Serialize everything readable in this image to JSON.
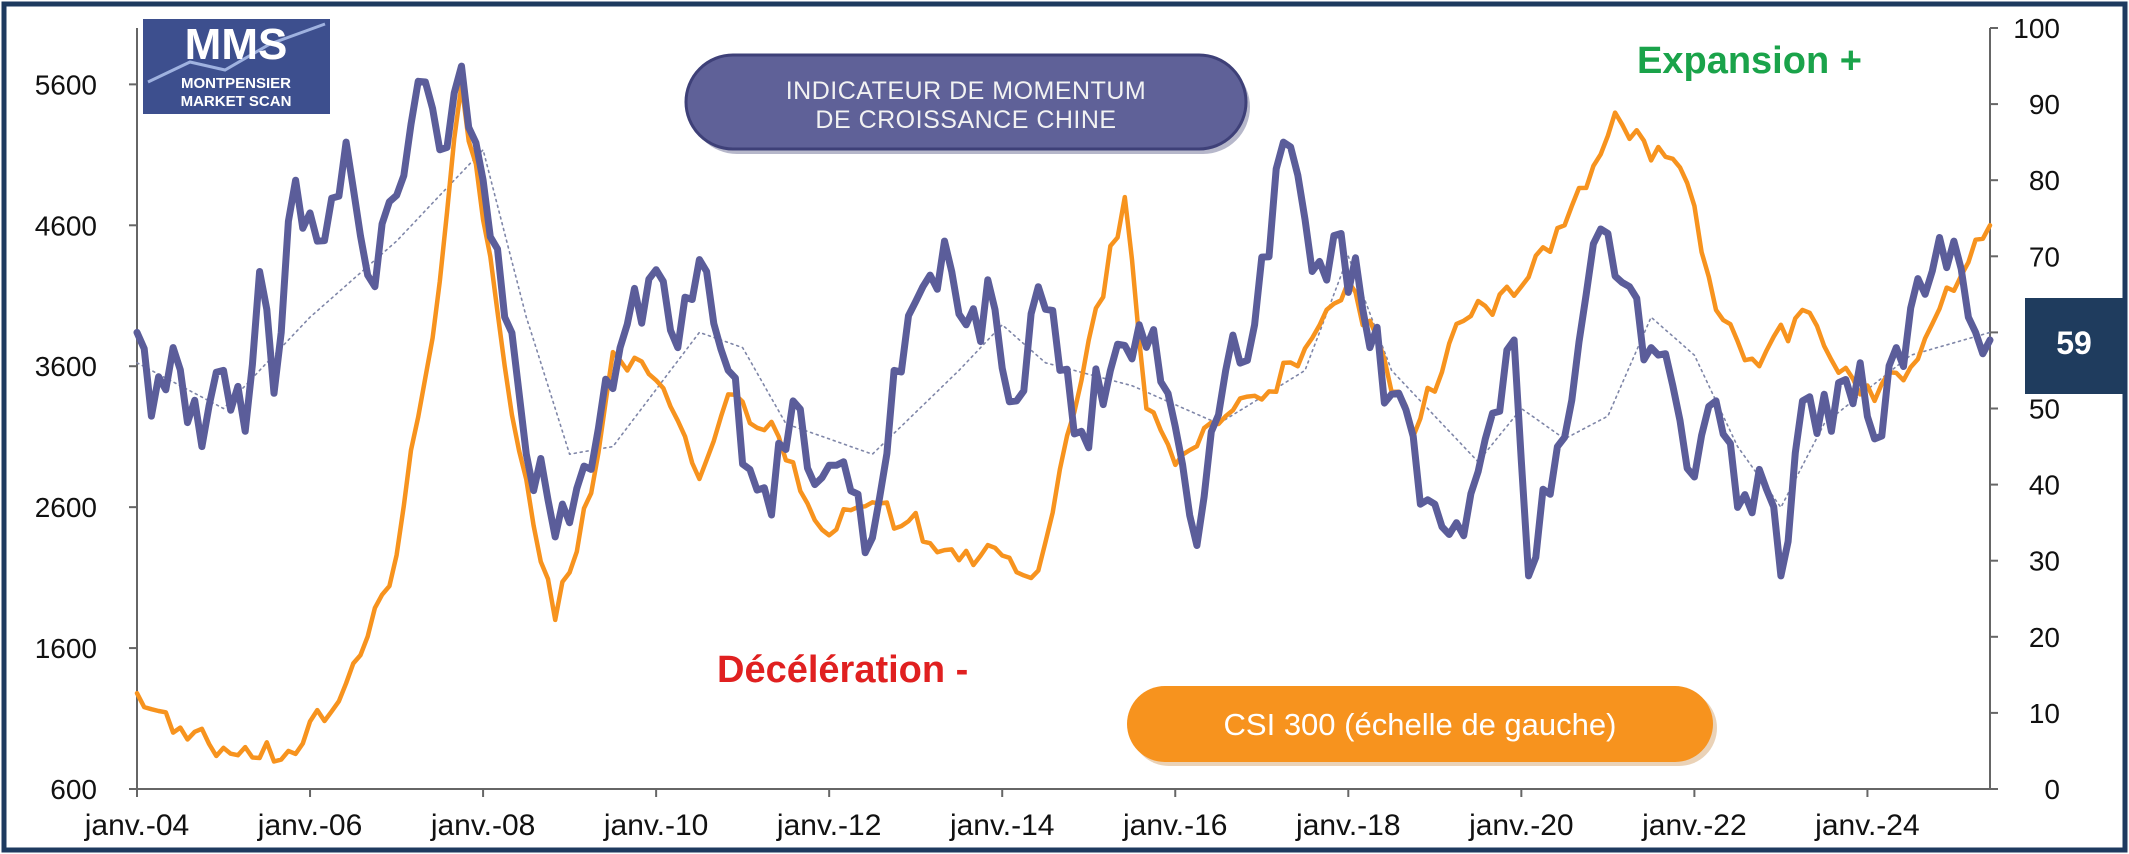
{
  "logo": {
    "abbr": "MMS",
    "line1": "MONTPENSIER",
    "line2": "MARKET SCAN"
  },
  "title_badge": {
    "line1": "INDICATEUR DE MOMENTUM",
    "line2": "DE CROISSANCE CHINE"
  },
  "annotations": {
    "expansion": "Expansion +",
    "deceleration": "Décélération -"
  },
  "csi_label": "CSI 300 (échelle de gauche)",
  "last_value_box": "59",
  "colors": {
    "indicator": "#5b5d9a",
    "csi": "#f7931e",
    "moving_average": "#7f86a8",
    "badge": "#5f6198",
    "frame": "#1e3a5f",
    "value_box": "#1f3c5e"
  },
  "chart_data": {
    "type": "line",
    "x_start": "2004-01",
    "x_step": "month",
    "x_tick_labels": [
      "janv.-04",
      "janv.-06",
      "janv.-08",
      "janv.-10",
      "janv.-12",
      "janv.-14",
      "janv.-16",
      "janv.-18",
      "janv.-20",
      "janv.-22",
      "janv.-24"
    ],
    "y_left": {
      "range": [
        600,
        6000
      ],
      "ticks": [
        "600",
        "1600",
        "2600",
        "3600",
        "4600",
        "5600"
      ]
    },
    "y_right": {
      "range": [
        0,
        100
      ],
      "ticks": [
        "0",
        "10",
        "20",
        "30",
        "40",
        "50",
        "60",
        "70",
        "80",
        "90",
        "100"
      ]
    },
    "grid": false,
    "series": [
      {
        "axis": "left",
        "style": "orange-line",
        "label": "CSI 300 (échelle de gauche)",
        "anchors": [
          [
            "2004-01",
            1280
          ],
          [
            "2004-06",
            1000
          ],
          [
            "2005-06",
            820
          ],
          [
            "2005-12",
            923
          ],
          [
            "2006-06",
            1350
          ],
          [
            "2006-12",
            2040
          ],
          [
            "2007-06",
            3800
          ],
          [
            "2007-10",
            5600
          ],
          [
            "2008-06",
            3000
          ],
          [
            "2008-11",
            1800
          ],
          [
            "2009-04",
            2700
          ],
          [
            "2009-07",
            3700
          ],
          [
            "2010-01",
            3500
          ],
          [
            "2010-07",
            2800
          ],
          [
            "2010-11",
            3400
          ],
          [
            "2011-06",
            3100
          ],
          [
            "2012-01",
            2400
          ],
          [
            "2012-05",
            2600
          ],
          [
            "2012-12",
            2500
          ],
          [
            "2013-06",
            2300
          ],
          [
            "2014-06",
            2150
          ],
          [
            "2014-12",
            3500
          ],
          [
            "2015-06",
            4800
          ],
          [
            "2015-09",
            3300
          ],
          [
            "2016-01",
            2900
          ],
          [
            "2016-06",
            3200
          ],
          [
            "2017-06",
            3600
          ],
          [
            "2018-01",
            4200
          ],
          [
            "2018-10",
            3100
          ],
          [
            "2019-04",
            3900
          ],
          [
            "2019-12",
            4100
          ],
          [
            "2020-07",
            4600
          ],
          [
            "2021-02",
            5400
          ],
          [
            "2021-06",
            5200
          ],
          [
            "2021-12",
            4900
          ],
          [
            "2022-04",
            4000
          ],
          [
            "2022-10",
            3600
          ],
          [
            "2023-04",
            4000
          ],
          [
            "2023-12",
            3400
          ],
          [
            "2024-06",
            3500
          ],
          [
            "2024-10",
            3900
          ],
          [
            "2025-06",
            4600
          ]
        ]
      },
      {
        "axis": "right",
        "style": "indicator-line",
        "label": "Indicateur de momentum de croissance Chine",
        "anchors": [
          [
            "2004-01",
            60
          ],
          [
            "2004-03",
            49
          ],
          [
            "2004-06",
            58
          ],
          [
            "2004-10",
            45
          ],
          [
            "2005-01",
            55
          ],
          [
            "2005-04",
            47
          ],
          [
            "2005-06",
            68
          ],
          [
            "2005-08",
            52
          ],
          [
            "2005-11",
            80
          ],
          [
            "2006-02",
            72
          ],
          [
            "2006-06",
            85
          ],
          [
            "2006-10",
            66
          ],
          [
            "2007-01",
            78
          ],
          [
            "2007-04",
            93
          ],
          [
            "2007-07",
            84
          ],
          [
            "2007-10",
            95
          ],
          [
            "2008-01",
            80
          ],
          [
            "2008-04",
            62
          ],
          [
            "2008-07",
            44
          ],
          [
            "2008-10",
            38
          ],
          [
            "2009-01",
            35
          ],
          [
            "2009-04",
            42
          ],
          [
            "2009-08",
            58
          ],
          [
            "2009-12",
            67
          ],
          [
            "2010-04",
            58
          ],
          [
            "2010-08",
            68
          ],
          [
            "2010-11",
            55
          ],
          [
            "2011-02",
            42
          ],
          [
            "2011-05",
            36
          ],
          [
            "2011-08",
            51
          ],
          [
            "2011-11",
            40
          ],
          [
            "2012-03",
            43
          ],
          [
            "2012-07",
            33
          ],
          [
            "2012-10",
            55
          ],
          [
            "2013-02",
            66
          ],
          [
            "2013-05",
            72
          ],
          [
            "2013-08",
            61
          ],
          [
            "2013-12",
            63
          ],
          [
            "2014-03",
            51
          ],
          [
            "2014-06",
            66
          ],
          [
            "2014-09",
            55
          ],
          [
            "2014-12",
            47
          ],
          [
            "2015-04",
            55
          ],
          [
            "2015-08",
            61
          ],
          [
            "2015-12",
            52
          ],
          [
            "2016-04",
            32
          ],
          [
            "2016-08",
            55
          ],
          [
            "2016-12",
            61
          ],
          [
            "2017-04",
            85
          ],
          [
            "2017-08",
            68
          ],
          [
            "2017-12",
            73
          ],
          [
            "2018-04",
            58
          ],
          [
            "2018-08",
            52
          ],
          [
            "2018-12",
            38
          ],
          [
            "2019-04",
            35
          ],
          [
            "2019-08",
            46
          ],
          [
            "2019-12",
            59
          ],
          [
            "2020-02",
            28
          ],
          [
            "2020-06",
            45
          ],
          [
            "2020-10",
            65
          ],
          [
            "2021-01",
            73
          ],
          [
            "2021-04",
            66
          ],
          [
            "2021-07",
            58
          ],
          [
            "2021-10",
            53
          ],
          [
            "2022-01",
            41
          ],
          [
            "2022-04",
            51
          ],
          [
            "2022-07",
            37
          ],
          [
            "2022-10",
            42
          ],
          [
            "2023-01",
            28
          ],
          [
            "2023-04",
            51
          ],
          [
            "2023-08",
            47
          ],
          [
            "2023-12",
            56
          ],
          [
            "2024-02",
            46
          ],
          [
            "2024-05",
            58
          ],
          [
            "2024-09",
            65
          ],
          [
            "2025-01",
            72
          ],
          [
            "2025-04",
            60
          ],
          [
            "2025-06",
            59
          ]
        ]
      },
      {
        "axis": "right",
        "style": "dotted-average",
        "label": "",
        "anchors": [
          [
            "2004-01",
            56
          ],
          [
            "2005-01",
            50
          ],
          [
            "2006-01",
            62
          ],
          [
            "2007-01",
            72
          ],
          [
            "2008-01",
            84
          ],
          [
            "2008-07",
            62
          ],
          [
            "2009-01",
            44
          ],
          [
            "2009-07",
            45
          ],
          [
            "2010-07",
            60
          ],
          [
            "2011-01",
            58
          ],
          [
            "2011-07",
            48
          ],
          [
            "2012-07",
            44
          ],
          [
            "2013-07",
            55
          ],
          [
            "2014-01",
            61
          ],
          [
            "2014-07",
            56
          ],
          [
            "2015-07",
            53
          ],
          [
            "2016-07",
            48
          ],
          [
            "2017-07",
            55
          ],
          [
            "2018-01",
            70
          ],
          [
            "2018-07",
            55
          ],
          [
            "2019-07",
            43
          ],
          [
            "2020-01",
            50
          ],
          [
            "2020-07",
            46
          ],
          [
            "2021-01",
            49
          ],
          [
            "2021-07",
            62
          ],
          [
            "2022-01",
            57
          ],
          [
            "2022-07",
            45
          ],
          [
            "2023-01",
            37
          ],
          [
            "2023-07",
            48
          ],
          [
            "2024-07",
            57
          ],
          [
            "2025-06",
            60
          ]
        ]
      }
    ]
  }
}
